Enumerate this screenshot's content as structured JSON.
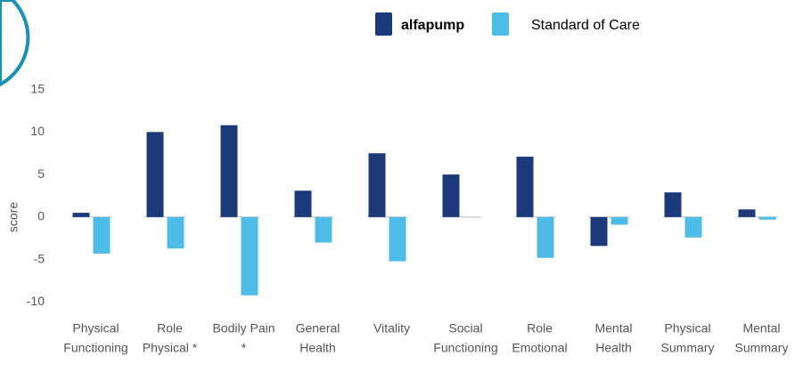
{
  "chart_data": {
    "type": "bar",
    "categories": [
      [
        "Physical",
        "Functioning"
      ],
      [
        "Role",
        "Physical *"
      ],
      [
        "Bodily Pain",
        "*"
      ],
      [
        "General",
        "Health"
      ],
      [
        "Vitality"
      ],
      [
        "Social",
        "Functioning"
      ],
      [
        "Role",
        "Emotional"
      ],
      [
        "Mental",
        "Health"
      ],
      [
        "Physical",
        "Summary"
      ],
      [
        "Mental",
        "Summary"
      ]
    ],
    "series": [
      {
        "name": "alfapump",
        "color": "#1c3a7a",
        "values": [
          0.5,
          10,
          10.8,
          3.1,
          7.5,
          5.0,
          7.1,
          -3.4,
          2.9,
          0.9
        ]
      },
      {
        "name": "Standard of Care",
        "color": "#4dbde8",
        "values": [
          -4.3,
          -3.7,
          -9.2,
          -3.0,
          -5.2,
          null,
          -4.8,
          -0.9,
          -2.4,
          -0.3
        ]
      }
    ],
    "y_label": "score",
    "ylim": [
      -11,
      16
    ],
    "yticks": [
      -10,
      -5,
      0,
      5,
      10,
      15
    ],
    "grid": false,
    "legend": "top"
  }
}
